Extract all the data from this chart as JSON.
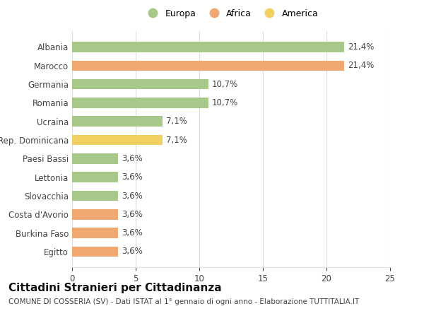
{
  "categories": [
    "Egitto",
    "Burkina Faso",
    "Costa d'Avorio",
    "Slovacchia",
    "Lettonia",
    "Paesi Bassi",
    "Rep. Dominicana",
    "Ucraina",
    "Romania",
    "Germania",
    "Marocco",
    "Albania"
  ],
  "values": [
    3.6,
    3.6,
    3.6,
    3.6,
    3.6,
    3.6,
    7.1,
    7.1,
    10.7,
    10.7,
    21.4,
    21.4
  ],
  "labels": [
    "3,6%",
    "3,6%",
    "3,6%",
    "3,6%",
    "3,6%",
    "3,6%",
    "7,1%",
    "7,1%",
    "10,7%",
    "10,7%",
    "21,4%",
    "21,4%"
  ],
  "colors": [
    "#f0a870",
    "#f0a870",
    "#f0a870",
    "#a8c88a",
    "#a8c88a",
    "#a8c88a",
    "#f0d060",
    "#a8c88a",
    "#a8c88a",
    "#a8c88a",
    "#f0a870",
    "#a8c88a"
  ],
  "legend_labels": [
    "Europa",
    "Africa",
    "America"
  ],
  "legend_colors": [
    "#a8c88a",
    "#f0a870",
    "#f0d060"
  ],
  "title": "Cittadini Stranieri per Cittadinanza",
  "subtitle": "COMUNE DI COSSERIA (SV) - Dati ISTAT al 1° gennaio di ogni anno - Elaborazione TUTTITALIA.IT",
  "xlim": [
    0,
    25
  ],
  "xticks": [
    0,
    5,
    10,
    15,
    20,
    25
  ],
  "bg_color": "#ffffff",
  "grid_color": "#dddddd",
  "bar_height": 0.55,
  "title_fontsize": 11,
  "subtitle_fontsize": 7.5,
  "tick_fontsize": 8.5,
  "label_fontsize": 8.5,
  "legend_fontsize": 9
}
